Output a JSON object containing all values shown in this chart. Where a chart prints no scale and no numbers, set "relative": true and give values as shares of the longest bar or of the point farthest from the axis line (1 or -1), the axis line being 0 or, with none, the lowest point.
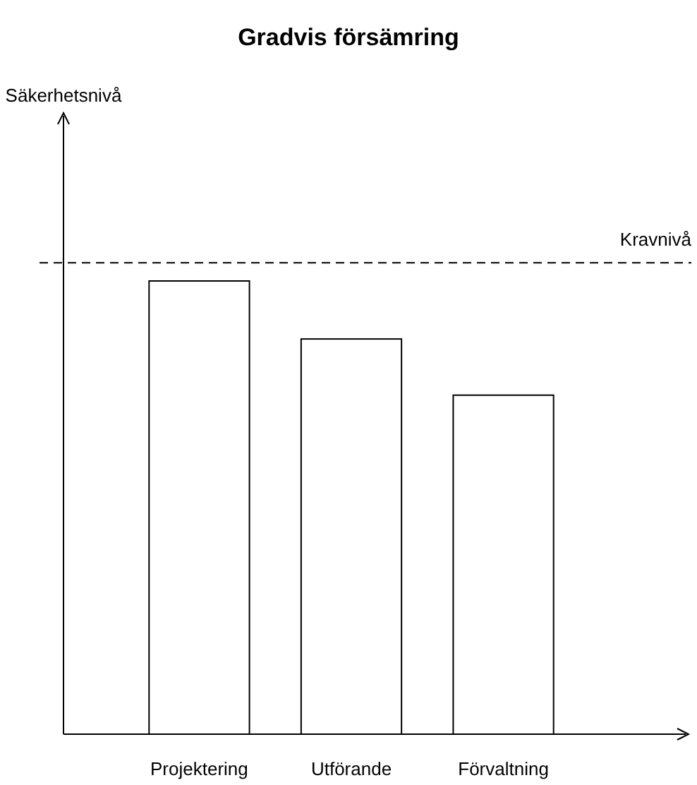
{
  "chart_data": {
    "type": "bar",
    "title": "Gradvis försämring",
    "annotations": [
      "Säkerhetsnivå"
    ],
    "relative": true,
    "categories": [
      "Projektering",
      "Utförande",
      "Förvaltning"
    ],
    "values": [
      1,
      0.872,
      0.748
    ],
    "color": "#ffffff",
    "ref_lines": [
      {
        "axis": "y",
        "value": 1.04,
        "label": "Kravnivå",
        "line_style": "dashed"
      }
    ]
  }
}
